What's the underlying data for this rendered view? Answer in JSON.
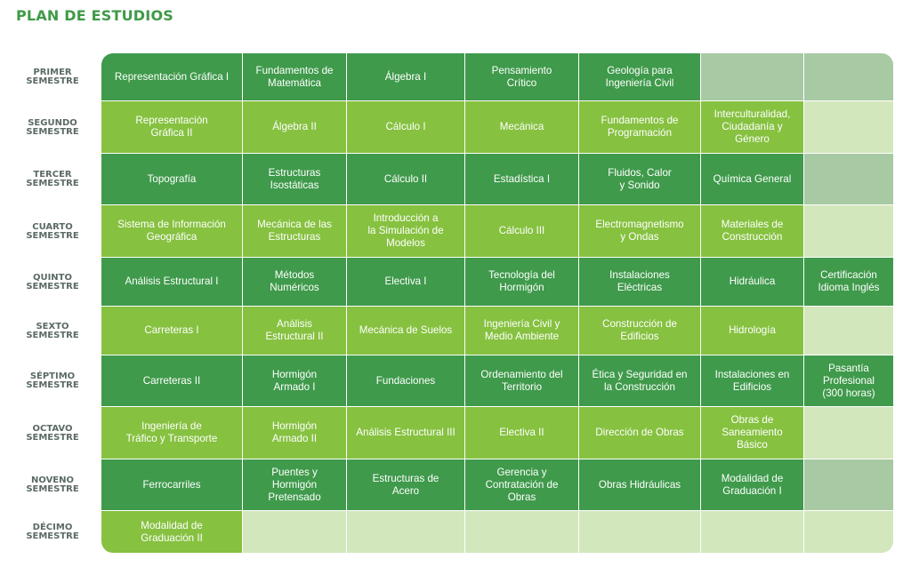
{
  "title": "PLAN DE ESTUDIOS",
  "semesters": [
    {
      "line1": "PRIMER",
      "line2": "SEMESTRE"
    },
    {
      "line1": "SEGUNDO",
      "line2": "SEMESTRE"
    },
    {
      "line1": "TERCER",
      "line2": "SEMESTRE"
    },
    {
      "line1": "CUARTO",
      "line2": "SEMESTRE"
    },
    {
      "line1": "QUINTO",
      "line2": "SEMESTRE"
    },
    {
      "line1": "SEXTO",
      "line2": "SEMESTRE"
    },
    {
      "line1": "SÉPTIMO",
      "line2": "SEMESTRE"
    },
    {
      "line1": "OCTAVO",
      "line2": "SEMESTRE"
    },
    {
      "line1": "NOVENO",
      "line2": "SEMESTRE"
    },
    {
      "line1": "DÉCIMO",
      "line2": "SEMESTRE"
    }
  ],
  "courses": [
    [
      "Representación Gráfica I",
      "Fundamentos de\nMatemática",
      "Álgebra I",
      "Pensamiento\nCrítico",
      "Geología para\nIngeniería Civil",
      "",
      ""
    ],
    [
      "Representación\nGráfica  II",
      "Álgebra II",
      "Cálculo I",
      "Mecánica",
      "Fundamentos de\nProgramación",
      "Interculturalidad,\nCiudadanía y\nGénero",
      ""
    ],
    [
      "Topografía",
      "Estructuras\nIsostáticas",
      "Cálculo II",
      "Estadística I",
      "Fluidos, Calor\ny Sonido",
      "Química General",
      ""
    ],
    [
      "Sistema de Información\nGeográfica",
      "Mecánica de las\nEstructuras",
      "Introducción a\nla Simulación de\nModelos",
      "Cálculo III",
      "Electromagnetismo\ny Ondas",
      "Materiales de\nConstrucción",
      ""
    ],
    [
      "Análisis Estructural I",
      "Métodos\nNuméricos",
      "Electiva I",
      "Tecnología del\nHormigón",
      "Instalaciones\nEléctricas",
      "Hidráulica",
      "Certificación\nIdioma Inglés"
    ],
    [
      "Carreteras I",
      "Análisis\nEstructural II",
      "Mecánica de Suelos",
      "Ingeniería Civil y\nMedio Ambiente",
      "Construcción de\nEdificios",
      "Hidrología",
      ""
    ],
    [
      "Carreteras II",
      "Hormigón\nArmado I",
      "Fundaciones",
      "Ordenamiento del\nTerritorio",
      "Ética y Seguridad en\nla Construcción",
      "Instalaciones en\nEdificios",
      "Pasantía\nProfesional\n(300 horas)"
    ],
    [
      "Ingeniería de\nTráfico y Transporte",
      "Hormigón\nArmado II",
      "Análisis Estructural III",
      "Electiva II",
      "Dirección de Obras",
      "Obras de\nSaneamiento\nBásico",
      ""
    ],
    [
      "Ferrocarriles",
      "Puentes y\nHormigón\nPretensado",
      "Estructuras de\nAcero",
      "Gerencia y\nContratación de\nObras",
      "Obras Hidráulicas",
      "Modalidad de\nGraduación I",
      ""
    ],
    [
      "Modalidad de\nGraduación II",
      "",
      "",
      "",
      "",
      "",
      ""
    ]
  ],
  "colors": {
    "title": "#3f9a47",
    "dark_green": "#3f9a4b",
    "light_green": "#86c140",
    "empty_dark": "#a7c9a3",
    "empty_light": "#d3e7bd",
    "semester_label": "#5b6a64"
  }
}
